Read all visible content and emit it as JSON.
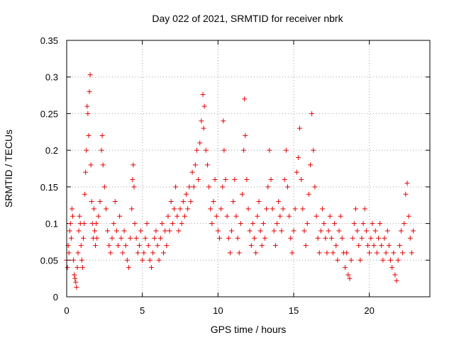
{
  "chart_data": {
    "type": "scatter",
    "title": "Day 022 of 2021, SRMTID for receiver nbrk",
    "xlabel": "GPS time / hours",
    "ylabel": "SRMTID / TECUs",
    "xlim": [
      0,
      24
    ],
    "ylim": [
      0,
      0.35
    ],
    "xticks": [
      0,
      5,
      10,
      15,
      20
    ],
    "xtick_labels": [
      "0",
      "5",
      "10",
      "15",
      "20"
    ],
    "yticks": [
      0,
      0.05,
      0.1,
      0.15,
      0.2,
      0.25,
      0.3,
      0.35
    ],
    "ytick_labels": [
      "0",
      "0.05",
      "0.1",
      "0.15",
      "0.2",
      "0.25",
      "0.3",
      "0.35"
    ],
    "grid": true,
    "marker": "+",
    "marker_color": "#e60000",
    "series": [
      {
        "name": "SRMTID",
        "points": [
          [
            0.0,
            0.05
          ],
          [
            0.05,
            0.04
          ],
          [
            0.1,
            0.07
          ],
          [
            0.15,
            0.06
          ],
          [
            0.2,
            0.09
          ],
          [
            0.25,
            0.1
          ],
          [
            0.3,
            0.08
          ],
          [
            0.35,
            0.12
          ],
          [
            0.4,
            0.11
          ],
          [
            0.45,
            0.05
          ],
          [
            0.5,
            0.03
          ],
          [
            0.55,
            0.025
          ],
          [
            0.6,
            0.02
          ],
          [
            0.65,
            0.013
          ],
          [
            0.7,
            0.04
          ],
          [
            0.75,
            0.06
          ],
          [
            0.8,
            0.09
          ],
          [
            0.85,
            0.11
          ],
          [
            0.9,
            0.1
          ],
          [
            0.95,
            0.07
          ],
          [
            1.0,
            0.05
          ],
          [
            1.05,
            0.04
          ],
          [
            1.1,
            0.08
          ],
          [
            1.15,
            0.1
          ],
          [
            1.2,
            0.14
          ],
          [
            1.25,
            0.17
          ],
          [
            1.3,
            0.2
          ],
          [
            1.35,
            0.26
          ],
          [
            1.4,
            0.25
          ],
          [
            1.45,
            0.22
          ],
          [
            1.5,
            0.28
          ],
          [
            1.55,
            0.303
          ],
          [
            1.6,
            0.18
          ],
          [
            1.65,
            0.13
          ],
          [
            1.7,
            0.1
          ],
          [
            1.75,
            0.08
          ],
          [
            1.8,
            0.12
          ],
          [
            1.85,
            0.09
          ],
          [
            1.9,
            0.07
          ],
          [
            1.95,
            0.1
          ],
          [
            2.0,
            0.08
          ],
          [
            2.1,
            0.11
          ],
          [
            2.2,
            0.13
          ],
          [
            2.3,
            0.2
          ],
          [
            2.35,
            0.22
          ],
          [
            2.4,
            0.18
          ],
          [
            2.5,
            0.15
          ],
          [
            2.6,
            0.12
          ],
          [
            2.7,
            0.09
          ],
          [
            2.8,
            0.07
          ],
          [
            2.9,
            0.06
          ],
          [
            3.0,
            0.08
          ],
          [
            3.1,
            0.1
          ],
          [
            3.2,
            0.13
          ],
          [
            3.3,
            0.09
          ],
          [
            3.4,
            0.07
          ],
          [
            3.5,
            0.11
          ],
          [
            3.6,
            0.08
          ],
          [
            3.7,
            0.06
          ],
          [
            3.8,
            0.09
          ],
          [
            3.9,
            0.07
          ],
          [
            4.0,
            0.05
          ],
          [
            4.1,
            0.04
          ],
          [
            4.2,
            0.08
          ],
          [
            4.3,
            0.12
          ],
          [
            4.35,
            0.16
          ],
          [
            4.4,
            0.18
          ],
          [
            4.45,
            0.15
          ],
          [
            4.5,
            0.1
          ],
          [
            4.6,
            0.08
          ],
          [
            4.7,
            0.06
          ],
          [
            4.8,
            0.07
          ],
          [
            4.9,
            0.09
          ],
          [
            5.0,
            0.05
          ],
          [
            5.1,
            0.06
          ],
          [
            5.2,
            0.08
          ],
          [
            5.3,
            0.1
          ],
          [
            5.4,
            0.07
          ],
          [
            5.5,
            0.05
          ],
          [
            5.6,
            0.04
          ],
          [
            5.7,
            0.06
          ],
          [
            5.8,
            0.08
          ],
          [
            5.9,
            0.09
          ],
          [
            6.0,
            0.07
          ],
          [
            6.1,
            0.05
          ],
          [
            6.2,
            0.08
          ],
          [
            6.3,
            0.1
          ],
          [
            6.4,
            0.06
          ],
          [
            6.5,
            0.09
          ],
          [
            6.6,
            0.07
          ],
          [
            6.7,
            0.11
          ],
          [
            6.8,
            0.09
          ],
          [
            6.9,
            0.13
          ],
          [
            7.0,
            0.1
          ],
          [
            7.1,
            0.12
          ],
          [
            7.2,
            0.15
          ],
          [
            7.3,
            0.11
          ],
          [
            7.4,
            0.09
          ],
          [
            7.5,
            0.12
          ],
          [
            7.6,
            0.1
          ],
          [
            7.7,
            0.13
          ],
          [
            7.8,
            0.11
          ],
          [
            7.9,
            0.14
          ],
          [
            8.0,
            0.12
          ],
          [
            8.1,
            0.15
          ],
          [
            8.2,
            0.13
          ],
          [
            8.3,
            0.17
          ],
          [
            8.4,
            0.15
          ],
          [
            8.5,
            0.18
          ],
          [
            8.6,
            0.2
          ],
          [
            8.7,
            0.16
          ],
          [
            8.8,
            0.21
          ],
          [
            8.9,
            0.24
          ],
          [
            9.0,
            0.276
          ],
          [
            9.05,
            0.23
          ],
          [
            9.1,
            0.26
          ],
          [
            9.2,
            0.2
          ],
          [
            9.3,
            0.18
          ],
          [
            9.4,
            0.15
          ],
          [
            9.5,
            0.12
          ],
          [
            9.6,
            0.1
          ],
          [
            9.7,
            0.13
          ],
          [
            9.8,
            0.16
          ],
          [
            9.9,
            0.11
          ],
          [
            10.0,
            0.09
          ],
          [
            10.1,
            0.08
          ],
          [
            10.2,
            0.12
          ],
          [
            10.3,
            0.15
          ],
          [
            10.35,
            0.24
          ],
          [
            10.4,
            0.2
          ],
          [
            10.5,
            0.16
          ],
          [
            10.6,
            0.11
          ],
          [
            10.7,
            0.08
          ],
          [
            10.8,
            0.06
          ],
          [
            10.9,
            0.09
          ],
          [
            11.0,
            0.13
          ],
          [
            11.1,
            0.16
          ],
          [
            11.2,
            0.11
          ],
          [
            11.3,
            0.08
          ],
          [
            11.4,
            0.06
          ],
          [
            11.5,
            0.1
          ],
          [
            11.6,
            0.14
          ],
          [
            11.7,
            0.2
          ],
          [
            11.75,
            0.27
          ],
          [
            11.8,
            0.22
          ],
          [
            11.9,
            0.16
          ],
          [
            12.0,
            0.12
          ],
          [
            12.1,
            0.09
          ],
          [
            12.2,
            0.07
          ],
          [
            12.3,
            0.1
          ],
          [
            12.4,
            0.08
          ],
          [
            12.5,
            0.06
          ],
          [
            12.6,
            0.11
          ],
          [
            12.7,
            0.13
          ],
          [
            12.8,
            0.09
          ],
          [
            12.9,
            0.07
          ],
          [
            13.0,
            0.1
          ],
          [
            13.1,
            0.08
          ],
          [
            13.2,
            0.12
          ],
          [
            13.3,
            0.15
          ],
          [
            13.4,
            0.2
          ],
          [
            13.5,
            0.16
          ],
          [
            13.6,
            0.12
          ],
          [
            13.7,
            0.09
          ],
          [
            13.8,
            0.07
          ],
          [
            13.9,
            0.1
          ],
          [
            14.0,
            0.13
          ],
          [
            14.1,
            0.11
          ],
          [
            14.2,
            0.09
          ],
          [
            14.3,
            0.12
          ],
          [
            14.4,
            0.16
          ],
          [
            14.5,
            0.2
          ],
          [
            14.6,
            0.15
          ],
          [
            14.7,
            0.11
          ],
          [
            14.8,
            0.08
          ],
          [
            14.9,
            0.06
          ],
          [
            15.0,
            0.09
          ],
          [
            15.1,
            0.12
          ],
          [
            15.2,
            0.17
          ],
          [
            15.3,
            0.19
          ],
          [
            15.4,
            0.23
          ],
          [
            15.5,
            0.16
          ],
          [
            15.6,
            0.12
          ],
          [
            15.7,
            0.09
          ],
          [
            15.8,
            0.07
          ],
          [
            15.9,
            0.1
          ],
          [
            16.0,
            0.14
          ],
          [
            16.1,
            0.18
          ],
          [
            16.2,
            0.25
          ],
          [
            16.3,
            0.2
          ],
          [
            16.4,
            0.15
          ],
          [
            16.5,
            0.11
          ],
          [
            16.6,
            0.08
          ],
          [
            16.7,
            0.06
          ],
          [
            16.8,
            0.09
          ],
          [
            16.9,
            0.12
          ],
          [
            17.0,
            0.1
          ],
          [
            17.1,
            0.08
          ],
          [
            17.2,
            0.06
          ],
          [
            17.3,
            0.09
          ],
          [
            17.4,
            0.11
          ],
          [
            17.5,
            0.08
          ],
          [
            17.6,
            0.06
          ],
          [
            17.7,
            0.1
          ],
          [
            17.8,
            0.07
          ],
          [
            17.9,
            0.05
          ],
          [
            18.0,
            0.09
          ],
          [
            18.1,
            0.11
          ],
          [
            18.2,
            0.08
          ],
          [
            18.3,
            0.06
          ],
          [
            18.4,
            0.04
          ],
          [
            18.5,
            0.06
          ],
          [
            18.6,
            0.03
          ],
          [
            18.7,
            0.025
          ],
          [
            18.8,
            0.05
          ],
          [
            18.9,
            0.08
          ],
          [
            19.0,
            0.1
          ],
          [
            19.1,
            0.12
          ],
          [
            19.2,
            0.09
          ],
          [
            19.3,
            0.07
          ],
          [
            19.4,
            0.05
          ],
          [
            19.5,
            0.08
          ],
          [
            19.6,
            0.1
          ],
          [
            19.7,
            0.12
          ],
          [
            19.8,
            0.09
          ],
          [
            19.9,
            0.07
          ],
          [
            20.0,
            0.06
          ],
          [
            20.1,
            0.08
          ],
          [
            20.2,
            0.1
          ],
          [
            20.3,
            0.07
          ],
          [
            20.4,
            0.09
          ],
          [
            20.5,
            0.06
          ],
          [
            20.6,
            0.08
          ],
          [
            20.7,
            0.1
          ],
          [
            20.8,
            0.07
          ],
          [
            20.9,
            0.05
          ],
          [
            21.0,
            0.08
          ],
          [
            21.1,
            0.06
          ],
          [
            21.2,
            0.09
          ],
          [
            21.3,
            0.07
          ],
          [
            21.4,
            0.05
          ],
          [
            21.5,
            0.04
          ],
          [
            21.6,
            0.06
          ],
          [
            21.7,
            0.03
          ],
          [
            21.8,
            0.022
          ],
          [
            21.9,
            0.05
          ],
          [
            22.0,
            0.07
          ],
          [
            22.1,
            0.09
          ],
          [
            22.2,
            0.06
          ],
          [
            22.3,
            0.1
          ],
          [
            22.4,
            0.14
          ],
          [
            22.5,
            0.155
          ],
          [
            22.6,
            0.11
          ],
          [
            22.7,
            0.08
          ],
          [
            22.8,
            0.06
          ],
          [
            22.9,
            0.09
          ]
        ]
      }
    ]
  }
}
